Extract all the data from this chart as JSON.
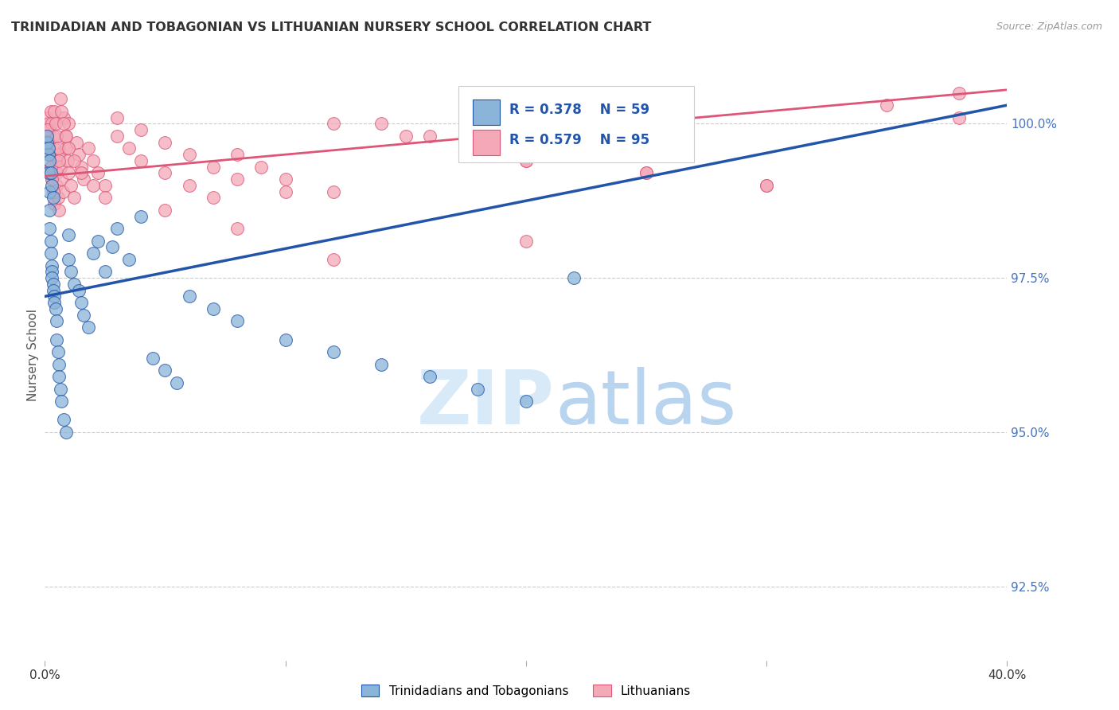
{
  "title": "TRINIDADIAN AND TOBAGONIAN VS LITHUANIAN NURSERY SCHOOL CORRELATION CHART",
  "source_text": "Source: ZipAtlas.com",
  "ylabel": "Nursery School",
  "ytick_values": [
    92.5,
    95.0,
    97.5,
    100.0
  ],
  "xmin": 0.0,
  "xmax": 40.0,
  "ymin": 91.3,
  "ymax": 101.2,
  "legend_label_blue": "Trinidadians and Tobagonians",
  "legend_label_pink": "Lithuanians",
  "color_blue": "#8ab4d8",
  "color_pink": "#f4a8b8",
  "color_line_blue": "#2255aa",
  "color_line_pink": "#dd5577",
  "watermark_color": "#d8eaf8",
  "blue_line_x0": 0.0,
  "blue_line_y0": 97.2,
  "blue_line_x1": 40.0,
  "blue_line_y1": 100.3,
  "pink_line_x0": 0.0,
  "pink_line_y0": 99.15,
  "pink_line_x1": 40.0,
  "pink_line_y1": 100.55,
  "blue_points_x": [
    0.15,
    0.15,
    0.2,
    0.2,
    0.2,
    0.25,
    0.25,
    0.3,
    0.3,
    0.3,
    0.35,
    0.35,
    0.4,
    0.4,
    0.45,
    0.5,
    0.5,
    0.55,
    0.6,
    0.6,
    0.65,
    0.7,
    0.8,
    0.9,
    1.0,
    1.0,
    1.1,
    1.2,
    1.4,
    1.5,
    1.6,
    1.8,
    2.0,
    2.2,
    2.5,
    2.8,
    3.0,
    3.5,
    4.0,
    4.5,
    5.0,
    5.5,
    6.0,
    7.0,
    8.0,
    10.0,
    12.0,
    14.0,
    16.0,
    18.0,
    20.0,
    22.0,
    0.1,
    0.1,
    0.15,
    0.2,
    0.25,
    0.3,
    0.35
  ],
  "blue_points_y": [
    99.5,
    99.2,
    98.9,
    98.6,
    98.3,
    98.1,
    97.9,
    97.7,
    97.6,
    97.5,
    97.4,
    97.3,
    97.2,
    97.1,
    97.0,
    96.8,
    96.5,
    96.3,
    96.1,
    95.9,
    95.7,
    95.5,
    95.2,
    95.0,
    97.8,
    98.2,
    97.6,
    97.4,
    97.3,
    97.1,
    96.9,
    96.7,
    97.9,
    98.1,
    97.6,
    98.0,
    98.3,
    97.8,
    98.5,
    96.2,
    96.0,
    95.8,
    97.2,
    97.0,
    96.8,
    96.5,
    96.3,
    96.1,
    95.9,
    95.7,
    95.5,
    97.5,
    99.7,
    99.8,
    99.6,
    99.4,
    99.2,
    99.0,
    98.8
  ],
  "pink_points_x": [
    0.1,
    0.1,
    0.15,
    0.15,
    0.2,
    0.2,
    0.25,
    0.25,
    0.3,
    0.3,
    0.35,
    0.35,
    0.4,
    0.4,
    0.45,
    0.5,
    0.5,
    0.55,
    0.6,
    0.6,
    0.65,
    0.7,
    0.75,
    0.8,
    0.85,
    0.9,
    0.95,
    1.0,
    1.0,
    1.1,
    1.2,
    1.3,
    1.4,
    1.5,
    1.6,
    1.8,
    2.0,
    2.2,
    2.5,
    3.0,
    3.5,
    4.0,
    5.0,
    6.0,
    7.0,
    8.0,
    9.0,
    10.0,
    12.0,
    14.0,
    16.0,
    18.0,
    20.0,
    25.0,
    30.0,
    35.0,
    38.0,
    0.1,
    0.15,
    0.2,
    0.25,
    0.3,
    0.35,
    0.4,
    0.45,
    0.5,
    0.55,
    0.6,
    0.65,
    0.7,
    0.8,
    0.9,
    1.0,
    1.2,
    1.5,
    2.0,
    2.5,
    3.0,
    4.0,
    5.0,
    6.0,
    7.0,
    8.0,
    10.0,
    12.0,
    15.0,
    18.0,
    20.0,
    25.0,
    30.0,
    8.0,
    12.0,
    5.0,
    20.0,
    38.0
  ],
  "pink_points_y": [
    99.8,
    100.1,
    100.0,
    99.7,
    99.9,
    99.5,
    100.2,
    99.3,
    100.0,
    99.1,
    99.8,
    98.9,
    99.6,
    98.7,
    99.4,
    99.2,
    99.0,
    98.8,
    99.5,
    98.6,
    99.3,
    99.1,
    98.9,
    100.1,
    99.8,
    99.6,
    99.4,
    99.2,
    100.0,
    99.0,
    98.8,
    99.7,
    99.5,
    99.3,
    99.1,
    99.6,
    99.4,
    99.2,
    99.0,
    99.8,
    99.6,
    99.4,
    99.2,
    99.0,
    98.8,
    99.5,
    99.3,
    99.1,
    98.9,
    100.0,
    99.8,
    99.6,
    99.4,
    99.2,
    99.0,
    100.3,
    100.1,
    99.9,
    99.7,
    99.5,
    99.3,
    99.1,
    98.9,
    100.2,
    100.0,
    99.8,
    99.6,
    99.4,
    100.4,
    100.2,
    100.0,
    99.8,
    99.6,
    99.4,
    99.2,
    99.0,
    98.8,
    100.1,
    99.9,
    99.7,
    99.5,
    99.3,
    99.1,
    98.9,
    100.0,
    99.8,
    99.6,
    99.4,
    99.2,
    99.0,
    98.3,
    97.8,
    98.6,
    98.1,
    100.5
  ]
}
